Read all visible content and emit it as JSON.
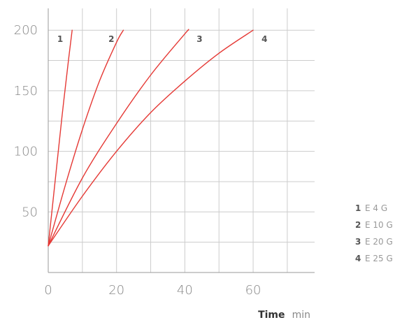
{
  "chart_data": {
    "type": "line",
    "xlabel": "Time",
    "xlabel_unit": "min",
    "ylabel": "",
    "xlim": [
      0,
      78
    ],
    "ylim": [
      0,
      218
    ],
    "x_ticks": [
      0,
      20,
      40,
      60
    ],
    "y_ticks": [
      50,
      100,
      150,
      200
    ],
    "grid": true,
    "grid_color": "#cccccc",
    "line_color": "#e53935",
    "legend_position": "right",
    "series": [
      {
        "name": "E 4 G",
        "number": "1",
        "x": [
          0,
          2,
          4,
          6,
          7
        ],
        "y": [
          22,
          75,
          128,
          177,
          200
        ]
      },
      {
        "name": "E 10 G",
        "number": "2",
        "x": [
          0,
          5,
          10,
          15,
          20,
          22
        ],
        "y": [
          22,
          72,
          118,
          158,
          190,
          200
        ]
      },
      {
        "name": "E 20 G",
        "number": "3",
        "x": [
          0,
          10,
          20,
          30,
          40,
          41
        ],
        "y": [
          22,
          78,
          123,
          163,
          197,
          200
        ]
      },
      {
        "name": "E 25 G",
        "number": "4",
        "x": [
          0,
          10,
          20,
          30,
          40,
          50,
          60
        ],
        "y": [
          22,
          63,
          100,
          132,
          158,
          181,
          200
        ]
      }
    ]
  }
}
